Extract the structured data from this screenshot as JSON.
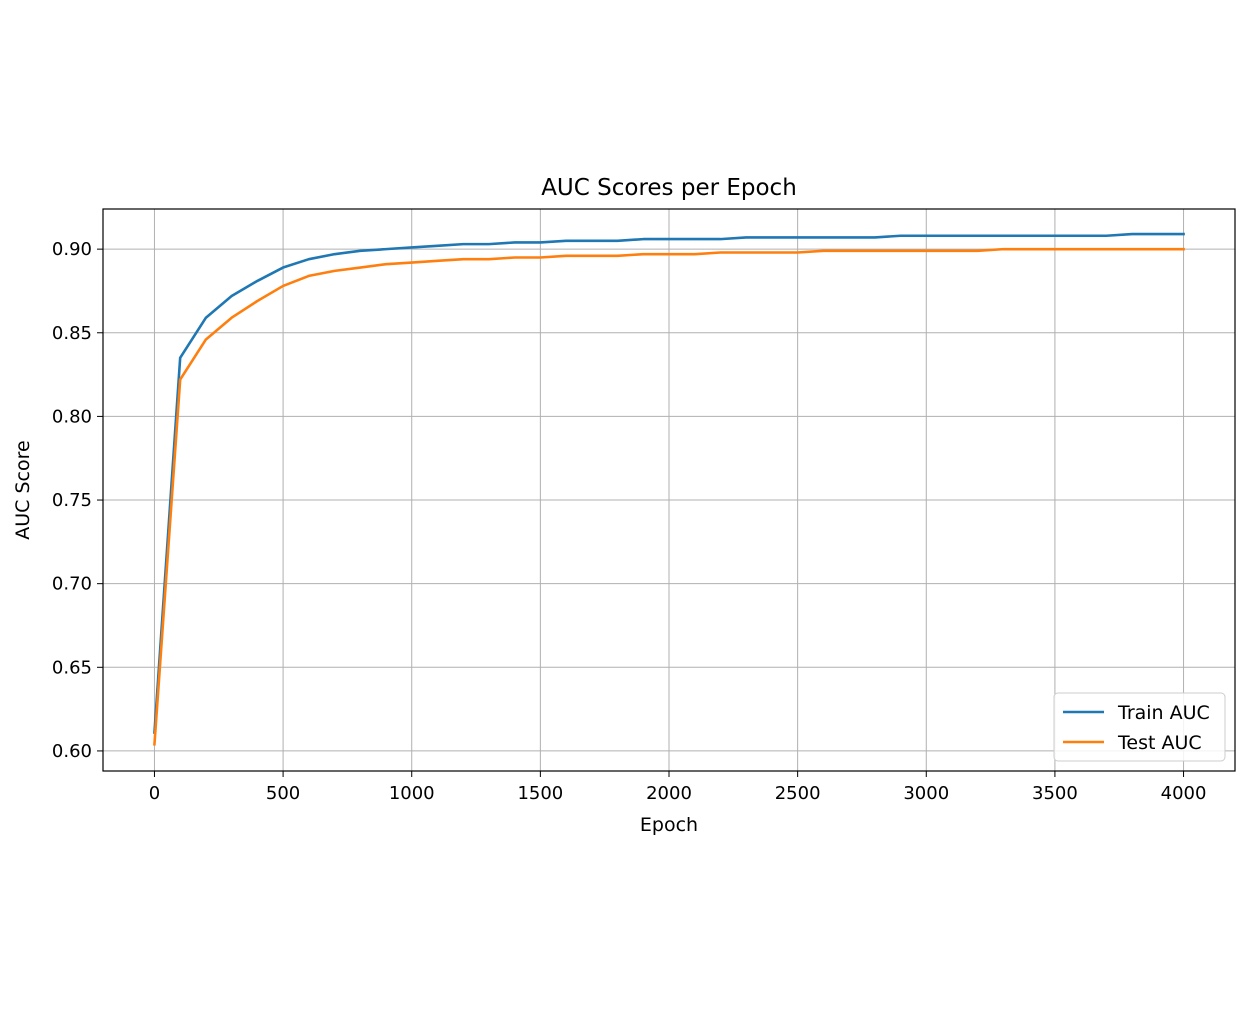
{
  "chart_data": {
    "type": "line",
    "title": "AUC Scores per Epoch",
    "xlabel": "Epoch",
    "ylabel": "AUC Score",
    "xlim": [
      -200,
      4200
    ],
    "ylim": [
      0.588,
      0.924
    ],
    "xticks": [
      0,
      500,
      1000,
      1500,
      2000,
      2500,
      3000,
      3500,
      4000
    ],
    "xtick_labels": [
      "0",
      "500",
      "1000",
      "1500",
      "2000",
      "2500",
      "3000",
      "3500",
      "4000"
    ],
    "yticks": [
      0.6,
      0.65,
      0.7,
      0.75,
      0.8,
      0.85,
      0.9
    ],
    "ytick_labels": [
      "0.60",
      "0.65",
      "0.70",
      "0.75",
      "0.80",
      "0.85",
      "0.90"
    ],
    "grid": true,
    "legend_position": "lower-right",
    "x": [
      0,
      100,
      200,
      300,
      400,
      500,
      600,
      700,
      800,
      900,
      1000,
      1100,
      1200,
      1300,
      1400,
      1500,
      1600,
      1700,
      1800,
      1900,
      2000,
      2100,
      2200,
      2300,
      2400,
      2500,
      2600,
      2700,
      2800,
      2900,
      3000,
      3100,
      3200,
      3300,
      3400,
      3500,
      3600,
      3700,
      3800,
      3900,
      4000
    ],
    "series": [
      {
        "name": "Train AUC",
        "color": "#1f77b4",
        "values": [
          0.611,
          0.835,
          0.859,
          0.872,
          0.881,
          0.889,
          0.894,
          0.897,
          0.899,
          0.9,
          0.901,
          0.902,
          0.903,
          0.903,
          0.904,
          0.904,
          0.905,
          0.905,
          0.905,
          0.906,
          0.906,
          0.906,
          0.906,
          0.907,
          0.907,
          0.907,
          0.907,
          0.907,
          0.907,
          0.908,
          0.908,
          0.908,
          0.908,
          0.908,
          0.908,
          0.908,
          0.908,
          0.908,
          0.909,
          0.909,
          0.909
        ]
      },
      {
        "name": "Test AUC",
        "color": "#ff7f0e",
        "values": [
          0.604,
          0.822,
          0.846,
          0.859,
          0.869,
          0.878,
          0.884,
          0.887,
          0.889,
          0.891,
          0.892,
          0.893,
          0.894,
          0.894,
          0.895,
          0.895,
          0.896,
          0.896,
          0.896,
          0.897,
          0.897,
          0.897,
          0.898,
          0.898,
          0.898,
          0.898,
          0.899,
          0.899,
          0.899,
          0.899,
          0.899,
          0.899,
          0.899,
          0.9,
          0.9,
          0.9,
          0.9,
          0.9,
          0.9,
          0.9,
          0.9
        ]
      }
    ]
  }
}
